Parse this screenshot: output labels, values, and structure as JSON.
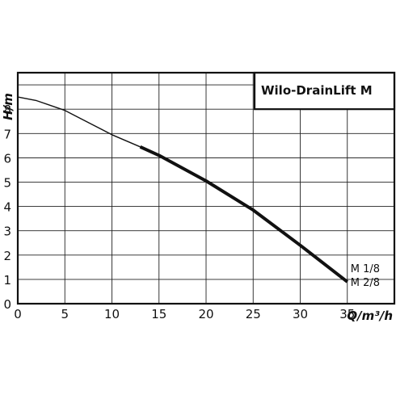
{
  "chart_data": {
    "type": "line",
    "title": "Wilo-DrainLift M",
    "xlabel": "Q/m³/h",
    "ylabel": "H/m",
    "xlim": [
      0,
      40
    ],
    "ylim": [
      0,
      9.5
    ],
    "x_ticks": [
      "0",
      "5",
      "10",
      "15",
      "20",
      "25",
      "30",
      "35"
    ],
    "y_ticks": [
      "0",
      "1",
      "2",
      "3",
      "4",
      "5",
      "6",
      "7",
      "8"
    ],
    "grid": true,
    "series": [
      {
        "name": "M 1/8",
        "style": "thin",
        "x": [
          0,
          2,
          5,
          8,
          10,
          13
        ],
        "y": [
          8.5,
          8.35,
          7.95,
          7.35,
          6.95,
          6.45
        ]
      },
      {
        "name": "M 2/8",
        "style": "thick",
        "x": [
          13,
          15,
          20,
          25,
          30,
          35
        ],
        "y": [
          6.45,
          6.1,
          5.05,
          3.85,
          2.4,
          0.9
        ]
      }
    ],
    "curve_labels": [
      "M 1/8",
      "M 2/8"
    ]
  }
}
